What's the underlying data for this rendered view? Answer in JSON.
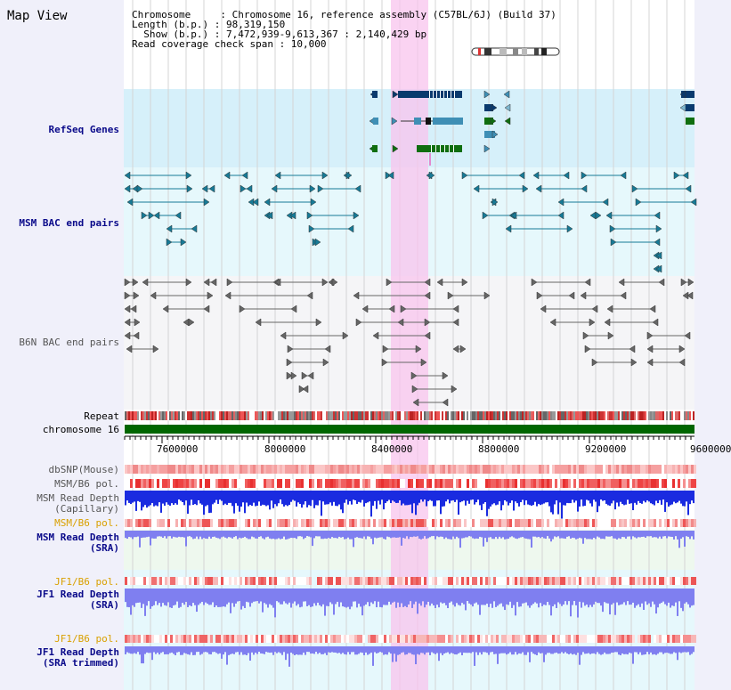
{
  "title": "Map View",
  "info": {
    "chromosome": "Chromosome     : Chromosome 16, reference assembly (C57BL/6J) (Build 37)",
    "length": "Length (b.p.) : 98,319,150",
    "show": "  Show (b.p.) : 7,472,939-9,613,367 : 2,140,429 bp",
    "coverage": "Read coverage check span : 10,000"
  },
  "tracks": {
    "refseq": "RefSeq Genes",
    "msm_bac": "MSM BAC end pairs",
    "b6n_bac": "B6N BAC end pairs",
    "repeat": "Repeat",
    "chromosome": "chromosome 16",
    "dbsnp": "dbSNP(Mouse)",
    "msm_b6_pol": "MSM/B6 pol.",
    "msm_depth_cap_1": "MSM Read Depth",
    "msm_depth_cap_2": "(Capillary)",
    "msm_b6_pol2": "MSM/B6 pol.",
    "msm_depth_sra_1": "MSM Read Depth",
    "msm_depth_sra_2": "(SRA)",
    "jf1_b6_pol": "JF1/B6 pol.",
    "jf1_depth_sra_1": "JF1 Read Depth",
    "jf1_depth_sra_2": "(SRA)",
    "jf1_b6_pol2": "JF1/B6 pol.",
    "jf1_depth_trim_1": "JF1 Read Depth",
    "jf1_depth_trim_2": "(SRA trimmed)"
  },
  "axis": {
    "ticks": [
      "7600000",
      "8000000",
      "8400000",
      "8800000",
      "9200000",
      "9600000"
    ]
  },
  "colors": {
    "refseq_bg": "#d6f0fa",
    "msm_bac_bg": "#e6f8fc",
    "b6n_bg": "#f5f5f7",
    "highlight": "#f8d4f0",
    "chromosome_bar": "#006600",
    "gene_dark": "#0a3a6e",
    "gene_mid": "#3f8fb5",
    "gene_green": "#0f6e0f",
    "msm_feature": "#177a96",
    "b6n_feature": "#666666",
    "depth_blue": "#1a2be0",
    "depth_violet": "#7f7ff0"
  }
}
